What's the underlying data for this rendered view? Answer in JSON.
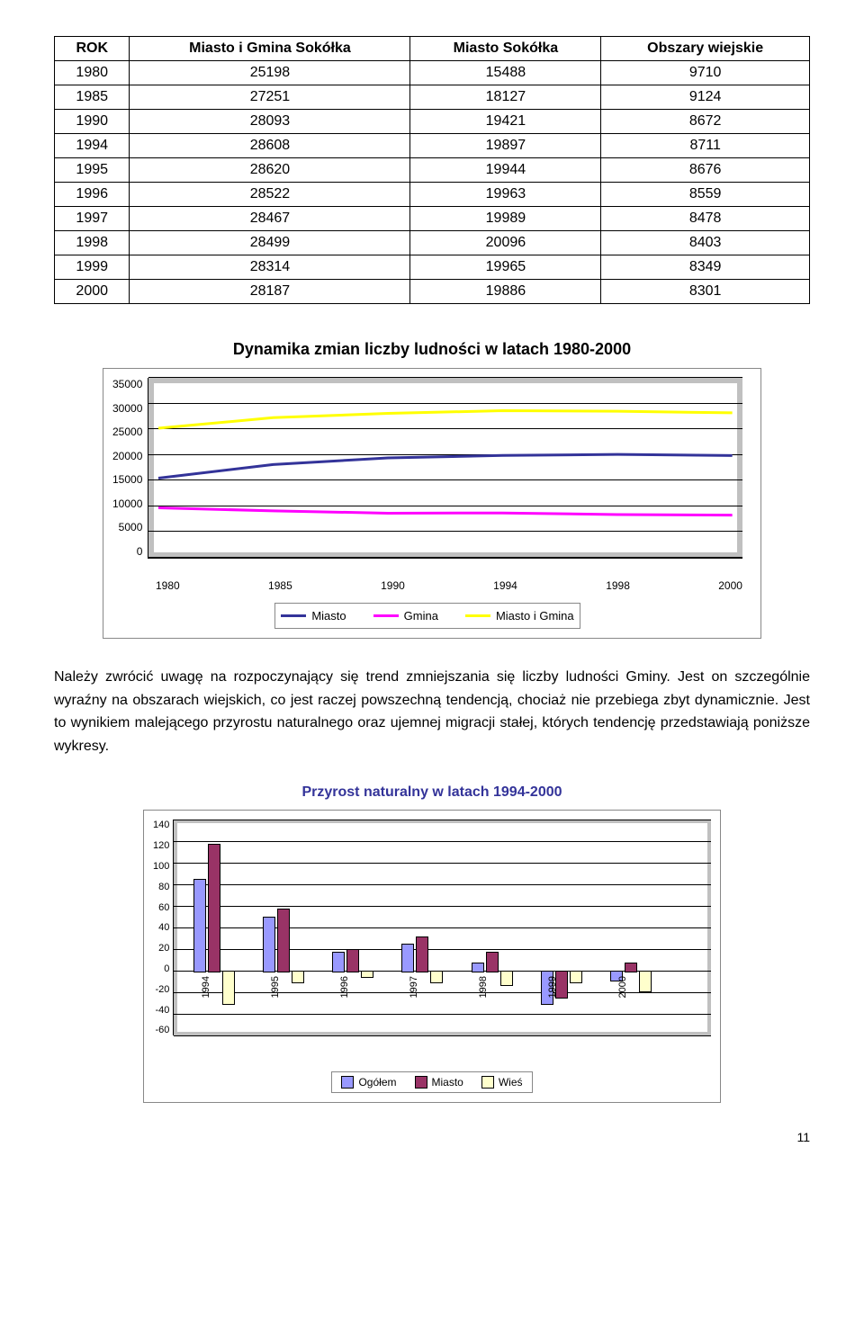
{
  "table": {
    "columns": [
      "ROK",
      "Miasto i Gmina Sokółka",
      "Miasto Sokółka",
      "Obszary wiejskie"
    ],
    "rows": [
      [
        "1980",
        "25198",
        "15488",
        "9710"
      ],
      [
        "1985",
        "27251",
        "18127",
        "9124"
      ],
      [
        "1990",
        "28093",
        "19421",
        "8672"
      ],
      [
        "1994",
        "28608",
        "19897",
        "8711"
      ],
      [
        "1995",
        "28620",
        "19944",
        "8676"
      ],
      [
        "1996",
        "28522",
        "19963",
        "8559"
      ],
      [
        "1997",
        "28467",
        "19989",
        "8478"
      ],
      [
        "1998",
        "28499",
        "20096",
        "8403"
      ],
      [
        "1999",
        "28314",
        "19965",
        "8349"
      ],
      [
        "2000",
        "28187",
        "19886",
        "8301"
      ]
    ]
  },
  "line_chart": {
    "title": "Dynamika zmian liczby ludności w latach 1980-2000",
    "ylim": [
      0,
      35000
    ],
    "ytick_step": 5000,
    "yticks": [
      "35000",
      "30000",
      "25000",
      "20000",
      "15000",
      "10000",
      "5000",
      "0"
    ],
    "xticks": [
      "1980",
      "1985",
      "1990",
      "1994",
      "1998",
      "2000"
    ],
    "series": [
      {
        "name": "Miasto",
        "color": "#333399",
        "values": [
          15488,
          18127,
          19421,
          19897,
          20096,
          19886
        ]
      },
      {
        "name": "Gmina",
        "color": "#ff00ff",
        "values": [
          9710,
          9124,
          8672,
          8711,
          8403,
          8301
        ]
      },
      {
        "name": "Miasto i Gmina",
        "color": "#ffff00",
        "values": [
          25198,
          27251,
          28093,
          28608,
          28499,
          28187
        ]
      }
    ],
    "grid_color": "#000000",
    "plot_bg": "#c0c0c0",
    "inner_bg": "#ffffff"
  },
  "paragraph": "Należy zwrócić uwagę na rozpoczynający się trend zmniejszania się liczby ludności Gminy. Jest on szczególnie wyraźny na obszarach wiejskich, co jest raczej powszechną tendencją, chociaż nie przebiega zbyt dynamicznie. Jest to wynikiem malejącego przyrostu naturalnego oraz ujemnej migracji stałej, których tendencję przedstawiają poniższe wykresy.",
  "bar_chart": {
    "title": "Przyrost naturalny w latach 1994-2000",
    "ylim": [
      -60,
      140
    ],
    "ytick_step": 20,
    "yticks": [
      "140",
      "120",
      "100",
      "80",
      "60",
      "40",
      "20",
      "0",
      "-20",
      "-40",
      "-60"
    ],
    "categories": [
      "1994",
      "1995",
      "1996",
      "1997",
      "1998",
      "1999",
      "2000"
    ],
    "series": [
      {
        "name": "Ogółem",
        "color": "#9999ff",
        "values": [
          85,
          50,
          18,
          25,
          8,
          -30,
          -8
        ]
      },
      {
        "name": "Miasto",
        "color": "#993366",
        "values": [
          118,
          58,
          20,
          32,
          18,
          -24,
          8
        ]
      },
      {
        "name": "Wieś",
        "color": "#ffffcc",
        "values": [
          -30,
          -10,
          -5,
          -10,
          -12,
          -10,
          -18
        ]
      }
    ]
  },
  "page_number": "11"
}
